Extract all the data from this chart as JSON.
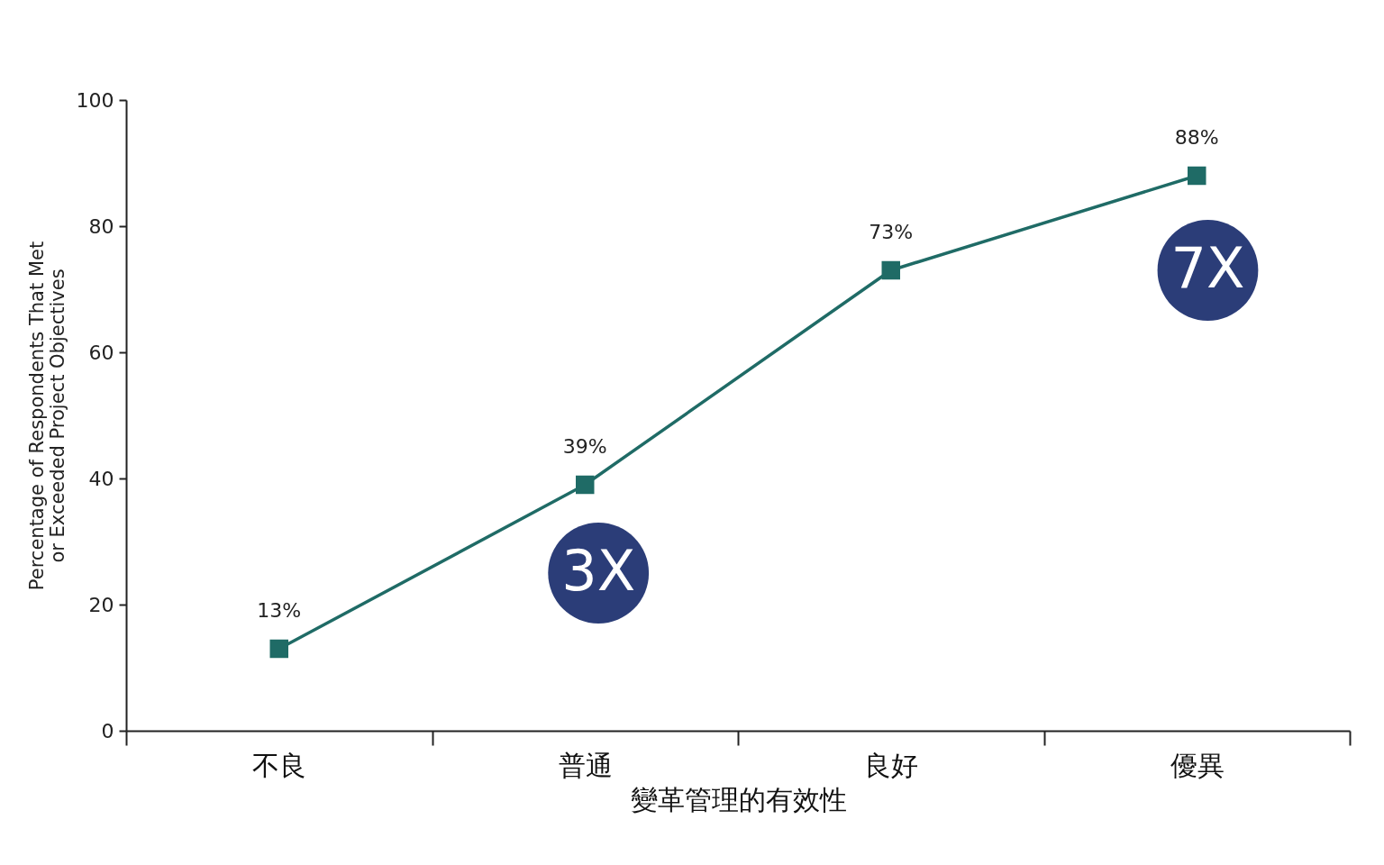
{
  "chart_data": {
    "type": "line",
    "xlabel": "變革管理的有效性",
    "ylabel": "Percentage of Respondents That Met or Exceeded Project Objectives",
    "categories": [
      "不良",
      "普通",
      "良好",
      "優異"
    ],
    "series": [
      {
        "color": "#1f6b66",
        "values": [
          13,
          39,
          73,
          88
        ]
      }
    ],
    "value_labels": [
      "13%",
      "39%",
      "73%",
      "88%"
    ],
    "ylim": [
      0,
      100
    ],
    "yticks": [
      0,
      20,
      40,
      60,
      80,
      100
    ],
    "marker": "square",
    "line_style": "solid",
    "annotations": [
      "3X",
      "7X"
    ]
  }
}
